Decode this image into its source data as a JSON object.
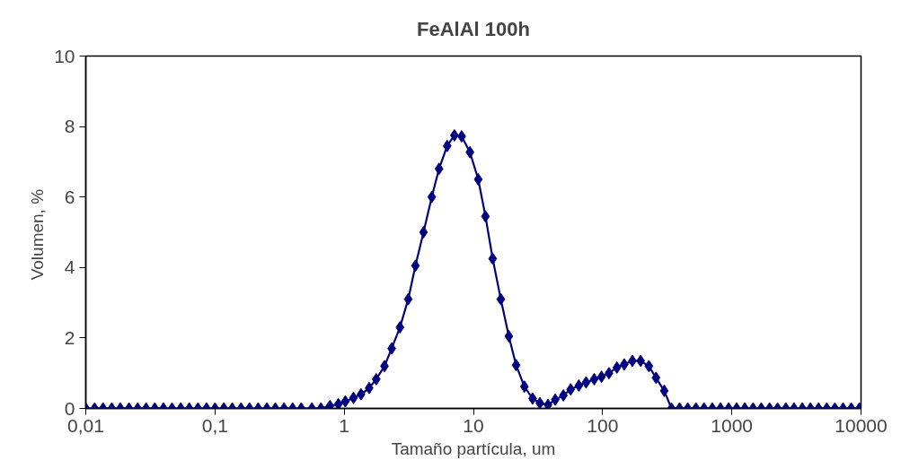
{
  "chart_data": {
    "type": "line",
    "title": "FeAlAl 100h",
    "xlabel": "Tamaño partícula, um",
    "ylabel": "Volumen,  %",
    "log": "x",
    "xlim": [
      0.01,
      10000
    ],
    "ylim": [
      0,
      10
    ],
    "xticks": [
      {
        "value": 0.01,
        "label": "0,01"
      },
      {
        "value": 0.1,
        "label": "0,1"
      },
      1,
      10,
      100,
      1000,
      10000
    ],
    "yticks": [
      0,
      2,
      4,
      6,
      8,
      10
    ],
    "grid": false,
    "marker": "diamond",
    "line_style": "solid",
    "x": [
      0.01,
      0.0117,
      0.0136,
      0.0159,
      0.0185,
      0.0216,
      0.0252,
      0.0293,
      0.0342,
      0.0399,
      0.0465,
      0.0543,
      0.0632,
      0.0738,
      0.086,
      0.1,
      0.117,
      0.136,
      0.159,
      0.185,
      0.216,
      0.252,
      0.293,
      0.342,
      0.399,
      0.465,
      0.562,
      0.661,
      0.776,
      0.9,
      1.02,
      1.18,
      1.35,
      1.56,
      1.77,
      2.05,
      2.33,
      2.7,
      3.13,
      3.56,
      4.11,
      4.76,
      5.42,
      6.27,
      7.13,
      8.11,
      9.4,
      10.9,
      12.4,
      14.1,
      16.3,
      18.8,
      21.4,
      24.8,
      28.7,
      32.7,
      37.8,
      43,
      49.7,
      56.6,
      65.5,
      74.5,
      86.1,
      98.1,
      112,
      129,
      147,
      170,
      197,
      228,
      259,
      300,
      341,
      394,
      456,
      528,
      610,
      706,
      817,
      945,
      1090,
      1260,
      1460,
      1690,
      1960,
      2260,
      2620,
      3030,
      3510,
      4060,
      4690,
      5430,
      6280,
      7260,
      8400,
      9710
    ],
    "series": [
      {
        "color": "#000080",
        "values": [
          0,
          0,
          0,
          0,
          0,
          0,
          0,
          0,
          0,
          0,
          0,
          0,
          0,
          0,
          0,
          0,
          0,
          0,
          0,
          0,
          0,
          0,
          0,
          0,
          0,
          0,
          0,
          0,
          0.07,
          0.12,
          0.2,
          0.3,
          0.4,
          0.58,
          0.83,
          1.2,
          1.7,
          2.3,
          3.1,
          4.05,
          5.0,
          6.0,
          6.8,
          7.45,
          7.75,
          7.72,
          7.27,
          6.5,
          5.45,
          4.25,
          3.1,
          2.05,
          1.23,
          0.62,
          0.28,
          0.15,
          0.1,
          0.25,
          0.37,
          0.54,
          0.65,
          0.74,
          0.83,
          0.9,
          1.0,
          1.16,
          1.25,
          1.35,
          1.35,
          1.2,
          0.87,
          0.5,
          0,
          0,
          0,
          0,
          0,
          0,
          0,
          0,
          0,
          0,
          0,
          0,
          0,
          0,
          0,
          0,
          0,
          0,
          0,
          0,
          0,
          0,
          0,
          0
        ]
      }
    ]
  }
}
